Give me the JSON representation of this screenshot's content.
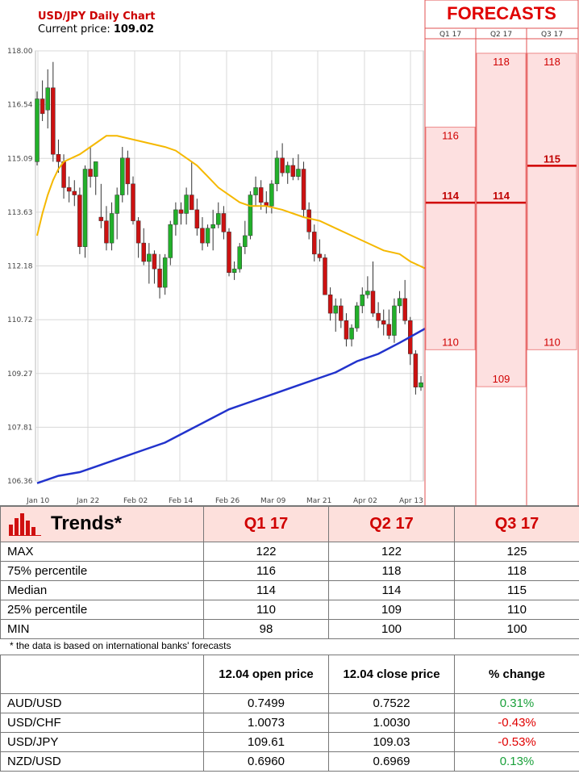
{
  "header": {
    "title": "USD/JPY Daily Chart",
    "price_label": "Current price:",
    "price_value": "109.02"
  },
  "forecasts": {
    "title": "FORECASTS",
    "columns": [
      {
        "label": "Q1 17",
        "bands": [
          110,
          116
        ],
        "median": 114
      },
      {
        "label": "Q2 17",
        "bands": [
          109,
          118
        ],
        "median": 114
      },
      {
        "label": "Q3 17",
        "bands": [
          110,
          118
        ],
        "median": 115
      }
    ]
  },
  "chart_data": {
    "type": "candlestick",
    "title": "USD/JPY Daily Chart",
    "y_ticks": [
      "118.00",
      "116.54",
      "115.09",
      "113.63",
      "112.18",
      "110.72",
      "109.27",
      "107.81",
      "106.36"
    ],
    "ylim": [
      106.36,
      118.0
    ],
    "x_ticks": [
      "Jan 10",
      "Jan 22",
      "Feb 02",
      "Feb 14",
      "Feb 26",
      "Mar 09",
      "Mar 21",
      "Apr 02",
      "Apr 13"
    ],
    "grid": true,
    "candles": [
      [
        115.0,
        116.9,
        114.9,
        116.7
      ],
      [
        116.7,
        117.2,
        116.1,
        116.3
      ],
      [
        116.4,
        117.5,
        115.9,
        117.0
      ],
      [
        117.0,
        117.7,
        115.0,
        115.2
      ],
      [
        115.2,
        115.6,
        114.7,
        115.0
      ],
      [
        115.0,
        115.2,
        114.0,
        114.3
      ],
      [
        114.3,
        114.6,
        113.9,
        114.2
      ],
      [
        114.2,
        114.5,
        113.8,
        114.1
      ],
      [
        114.1,
        114.3,
        112.5,
        112.7
      ],
      [
        112.7,
        114.9,
        112.4,
        114.8
      ],
      [
        114.8,
        115.4,
        114.3,
        114.6
      ],
      [
        114.6,
        115.0,
        114.1,
        115.0
      ],
      [
        113.5,
        114.4,
        113.2,
        113.4
      ],
      [
        113.4,
        113.8,
        112.6,
        112.8
      ],
      [
        112.8,
        113.9,
        112.6,
        113.6
      ],
      [
        113.6,
        114.3,
        112.9,
        114.1
      ],
      [
        114.1,
        115.4,
        113.9,
        115.1
      ],
      [
        115.1,
        115.3,
        114.1,
        114.4
      ],
      [
        114.4,
        114.6,
        113.3,
        113.4
      ],
      [
        113.4,
        113.5,
        112.4,
        112.8
      ],
      [
        112.8,
        113.2,
        112.2,
        112.3
      ],
      [
        112.3,
        112.8,
        111.7,
        112.5
      ],
      [
        112.5,
        112.6,
        111.7,
        112.1
      ],
      [
        112.1,
        112.5,
        111.3,
        111.6
      ],
      [
        111.6,
        112.5,
        111.4,
        112.4
      ],
      [
        112.4,
        113.4,
        112.2,
        113.3
      ],
      [
        113.3,
        113.9,
        113.0,
        113.7
      ],
      [
        113.7,
        113.9,
        113.3,
        113.6
      ],
      [
        113.6,
        114.3,
        113.3,
        114.1
      ],
      [
        114.1,
        115.0,
        113.8,
        113.7
      ],
      [
        113.7,
        114.0,
        113.0,
        113.2
      ],
      [
        113.2,
        113.5,
        112.6,
        112.8
      ],
      [
        112.8,
        113.3,
        112.7,
        113.2
      ],
      [
        113.2,
        113.7,
        112.6,
        113.3
      ],
      [
        113.3,
        113.9,
        113.2,
        113.6
      ],
      [
        113.6,
        113.8,
        112.9,
        113.1
      ],
      [
        113.1,
        113.2,
        111.9,
        112.0
      ],
      [
        112.0,
        112.3,
        111.8,
        112.1
      ],
      [
        112.1,
        112.8,
        112.0,
        112.7
      ],
      [
        112.7,
        113.4,
        112.5,
        113.0
      ],
      [
        113.0,
        114.2,
        112.9,
        114.1
      ],
      [
        114.1,
        114.6,
        113.8,
        114.3
      ],
      [
        114.3,
        114.5,
        113.7,
        113.9
      ],
      [
        113.9,
        114.2,
        113.6,
        113.8
      ],
      [
        113.8,
        114.5,
        113.6,
        114.4
      ],
      [
        114.4,
        115.3,
        114.2,
        115.1
      ],
      [
        115.1,
        115.5,
        114.6,
        114.7
      ],
      [
        114.7,
        115.0,
        114.4,
        114.9
      ],
      [
        114.9,
        115.1,
        114.5,
        114.6
      ],
      [
        114.6,
        115.2,
        114.5,
        114.8
      ],
      [
        114.8,
        115.0,
        113.5,
        113.7
      ],
      [
        113.7,
        113.9,
        112.9,
        113.1
      ],
      [
        113.1,
        113.3,
        112.3,
        112.5
      ],
      [
        112.5,
        112.9,
        112.3,
        112.4
      ],
      [
        112.4,
        112.5,
        111.4,
        111.4
      ],
      [
        111.4,
        111.6,
        110.7,
        110.9
      ],
      [
        110.9,
        111.3,
        110.4,
        111.1
      ],
      [
        111.1,
        111.3,
        110.5,
        110.7
      ],
      [
        110.7,
        110.9,
        110.0,
        110.2
      ],
      [
        110.2,
        110.6,
        110.0,
        110.5
      ],
      [
        110.5,
        111.2,
        110.4,
        111.1
      ],
      [
        111.1,
        111.6,
        110.9,
        111.4
      ],
      [
        111.4,
        111.9,
        111.3,
        111.5
      ],
      [
        111.5,
        112.3,
        110.8,
        110.9
      ],
      [
        110.9,
        111.2,
        110.5,
        110.7
      ],
      [
        110.7,
        111.0,
        110.3,
        110.6
      ],
      [
        110.6,
        111.0,
        110.2,
        110.3
      ],
      [
        110.3,
        111.3,
        110.1,
        111.1
      ],
      [
        111.1,
        111.5,
        110.9,
        111.3
      ],
      [
        111.3,
        111.8,
        110.6,
        110.7
      ],
      [
        110.7,
        110.8,
        109.5,
        109.8
      ],
      [
        109.8,
        109.9,
        108.7,
        108.9
      ],
      [
        108.9,
        109.2,
        108.8,
        109.02
      ]
    ],
    "ma_fast": [
      [
        0,
        113.0
      ],
      [
        1,
        113.6
      ],
      [
        2,
        114.1
      ],
      [
        3,
        114.5
      ],
      [
        4,
        114.8
      ],
      [
        5,
        115.0
      ],
      [
        8,
        115.2
      ],
      [
        11,
        115.5
      ],
      [
        13,
        115.7
      ],
      [
        15,
        115.7
      ],
      [
        18,
        115.6
      ],
      [
        21,
        115.5
      ],
      [
        24,
        115.4
      ],
      [
        26,
        115.3
      ],
      [
        28,
        115.1
      ],
      [
        30,
        114.9
      ],
      [
        32,
        114.6
      ],
      [
        34,
        114.3
      ],
      [
        36,
        114.1
      ],
      [
        38,
        113.9
      ],
      [
        40,
        113.8
      ],
      [
        43,
        113.8
      ],
      [
        46,
        113.7
      ],
      [
        48,
        113.6
      ],
      [
        50,
        113.5
      ],
      [
        53,
        113.4
      ],
      [
        56,
        113.2
      ],
      [
        59,
        113.0
      ],
      [
        62,
        112.8
      ],
      [
        65,
        112.6
      ],
      [
        68,
        112.5
      ],
      [
        70,
        112.3
      ],
      [
        73,
        112.1
      ]
    ],
    "ma_slow": [
      [
        0,
        106.3
      ],
      [
        4,
        106.5
      ],
      [
        8,
        106.6
      ],
      [
        12,
        106.8
      ],
      [
        16,
        107.0
      ],
      [
        20,
        107.2
      ],
      [
        24,
        107.4
      ],
      [
        28,
        107.7
      ],
      [
        32,
        108.0
      ],
      [
        36,
        108.3
      ],
      [
        40,
        108.5
      ],
      [
        44,
        108.7
      ],
      [
        48,
        108.9
      ],
      [
        52,
        109.1
      ],
      [
        56,
        109.3
      ],
      [
        60,
        109.6
      ],
      [
        64,
        109.8
      ],
      [
        68,
        110.1
      ],
      [
        73,
        110.5
      ]
    ]
  },
  "trends": {
    "title": "Trends*",
    "columns": [
      "Q1 17",
      "Q2 17",
      "Q3 17"
    ],
    "rows": [
      {
        "label": "MAX",
        "values": [
          "122",
          "122",
          "125"
        ]
      },
      {
        "label": "75% percentile",
        "values": [
          "116",
          "118",
          "118"
        ]
      },
      {
        "label": "Median",
        "values": [
          "114",
          "114",
          "115"
        ]
      },
      {
        "label": "25% percentile",
        "values": [
          "110",
          "109",
          "110"
        ]
      },
      {
        "label": "MIN",
        "values": [
          "98",
          "100",
          "100"
        ]
      }
    ],
    "note": "* the data is based on international banks' forecasts"
  },
  "fx": {
    "headers": [
      "12.04 open price",
      "12.04 close price",
      "% change"
    ],
    "rows": [
      {
        "pair": "AUD/USD",
        "open": "0.7499",
        "close": "0.7522",
        "change": "0.31%",
        "dir": "pos"
      },
      {
        "pair": "USD/CHF",
        "open": "1.0073",
        "close": "1.0030",
        "change": "-0.43%",
        "dir": "neg"
      },
      {
        "pair": "USD/JPY",
        "open": "109.61",
        "close": "109.03",
        "change": "-0.53%",
        "dir": "neg"
      },
      {
        "pair": "NZD/USD",
        "open": "0.6960",
        "close": "0.6969",
        "change": "0.13%",
        "dir": "pos"
      }
    ]
  },
  "colors": {
    "up": "#22b02a",
    "down": "#cc1111",
    "ma_fast": "#f5b800",
    "ma_slow": "#2233cc",
    "band": "#fde0e0",
    "band_border": "#e88"
  }
}
